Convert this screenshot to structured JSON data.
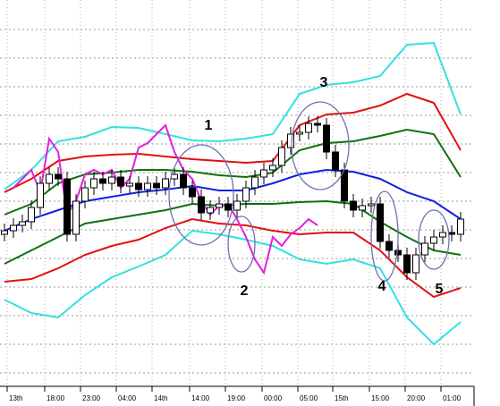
{
  "chart_data": {
    "type": "candlestick",
    "open": [
      16.8,
      17.2,
      17.8,
      18.2,
      19.8,
      22.5,
      23.5,
      23.0,
      16.8,
      20.5,
      22.0,
      23.0,
      22.5,
      23.2,
      22.2,
      22.5,
      21.8,
      22.5,
      22.0,
      23.0,
      23.5,
      22.0,
      21.0,
      19.2,
      19.8,
      20.2,
      19.5,
      20.5,
      22.0,
      23.2,
      24.0,
      24.5,
      26.5,
      28.0,
      28.2,
      29.2,
      29.0,
      26.0,
      24.0,
      20.5,
      19.5,
      20.0,
      20.2,
      16.0,
      15.0,
      14.5,
      12.5,
      14.5,
      15.8,
      16.5,
      17.0,
      16.8
    ],
    "high": [
      18.0,
      18.6,
      19.0,
      20.6,
      23.3,
      24.3,
      24.3,
      23.8,
      21.3,
      22.8,
      23.8,
      23.8,
      24.0,
      24.0,
      23.3,
      23.3,
      23.3,
      23.3,
      23.8,
      24.3,
      24.3,
      22.8,
      21.8,
      20.6,
      21.0,
      21.0,
      21.3,
      22.8,
      24.0,
      24.8,
      25.3,
      27.3,
      28.8,
      29.0,
      30.0,
      30.0,
      29.8,
      26.8,
      24.8,
      21.3,
      20.8,
      21.0,
      21.0,
      16.8,
      15.8,
      15.3,
      15.3,
      16.6,
      17.3,
      17.8,
      17.8,
      19.3
    ],
    "low": [
      16.0,
      16.4,
      17.0,
      17.4,
      19.0,
      21.7,
      22.2,
      16.0,
      16.0,
      19.7,
      21.2,
      21.7,
      21.7,
      21.4,
      21.4,
      21.0,
      21.0,
      21.2,
      21.2,
      22.2,
      21.2,
      20.2,
      18.4,
      18.4,
      19.0,
      18.7,
      18.7,
      19.7,
      21.2,
      22.4,
      23.2,
      23.7,
      25.7,
      27.2,
      27.4,
      28.2,
      25.2,
      23.2,
      19.7,
      18.7,
      18.7,
      19.2,
      15.2,
      14.2,
      13.7,
      11.7,
      11.7,
      13.7,
      15.0,
      15.7,
      16.0,
      16.0
    ],
    "close": [
      17.2,
      17.8,
      18.2,
      19.8,
      22.5,
      23.5,
      23.0,
      16.8,
      20.5,
      22.0,
      23.0,
      22.5,
      23.2,
      22.2,
      22.5,
      21.8,
      22.5,
      22.0,
      23.0,
      23.5,
      22.0,
      21.0,
      19.2,
      19.8,
      20.2,
      19.5,
      20.5,
      22.0,
      23.2,
      24.0,
      24.5,
      26.5,
      28.0,
      28.2,
      29.2,
      29.0,
      26.0,
      24.0,
      20.5,
      19.5,
      20.0,
      20.2,
      16.0,
      15.0,
      14.5,
      12.5,
      14.5,
      15.8,
      16.5,
      17.0,
      16.8,
      18.5
    ],
    "line_x": [
      0,
      3,
      6,
      9,
      12,
      15,
      18,
      21,
      24,
      27,
      30,
      33,
      36,
      39,
      42,
      45,
      48,
      51
    ],
    "lines": [
      {
        "color": "#33e0e0",
        "values": [
          21.8,
          24.0,
          27.2,
          27.7,
          28.8,
          28.7,
          28.0,
          27.3,
          27.2,
          27.5,
          28.0,
          32.5,
          33.5,
          33.8,
          34.5,
          38.0,
          38.2,
          30.2
        ]
      },
      {
        "color": "#e01010",
        "values": [
          21.5,
          23.0,
          25.0,
          25.5,
          25.7,
          25.8,
          25.5,
          25.2,
          25.0,
          24.8,
          25.0,
          29.0,
          30.2,
          30.4,
          31.2,
          32.5,
          31.5,
          26.2
        ]
      },
      {
        "color": "#107010",
        "values": [
          19.0,
          20.2,
          22.5,
          23.5,
          23.7,
          24.0,
          24.0,
          23.8,
          23.4,
          23.2,
          23.7,
          26.2,
          27.0,
          27.2,
          27.8,
          28.5,
          28.0,
          23.2
        ]
      },
      {
        "color": "#1020e0",
        "values": [
          17.2,
          18.5,
          19.5,
          20.5,
          21.0,
          21.5,
          21.8,
          22.2,
          21.7,
          21.7,
          22.5,
          23.5,
          24.0,
          23.8,
          23.0,
          21.5,
          20.5,
          18.5
        ]
      },
      {
        "color": "#107010",
        "values": [
          13.5,
          15.0,
          16.5,
          18.0,
          18.5,
          19.0,
          19.5,
          20.2,
          20.0,
          20.2,
          20.2,
          20.4,
          20.5,
          20.2,
          18.2,
          16.5,
          15.0,
          14.5
        ]
      },
      {
        "color": "#e01010",
        "values": [
          11.5,
          11.8,
          13.0,
          14.5,
          15.5,
          16.2,
          17.5,
          18.5,
          18.0,
          17.8,
          17.2,
          16.8,
          17.0,
          17.0,
          15.0,
          12.0,
          9.8,
          10.8
        ]
      },
      {
        "color": "#33e0e0",
        "values": [
          9.5,
          8.0,
          7.5,
          10.0,
          12.0,
          13.2,
          14.5,
          17.2,
          16.8,
          16.2,
          15.5,
          14.0,
          13.5,
          14.0,
          13.0,
          7.5,
          4.5,
          7.0
        ]
      }
    ],
    "lagging": {
      "color": "#e020e0",
      "x": [
        1,
        2,
        3,
        4,
        5,
        6,
        7,
        8,
        9,
        10,
        11,
        12,
        13,
        14,
        15,
        16,
        17,
        18,
        19,
        20,
        21,
        22,
        23,
        24,
        25,
        26,
        27,
        28,
        29,
        30,
        31,
        32,
        33,
        34,
        35
      ],
      "values": [
        22.0,
        23.0,
        24.0,
        21.5,
        27.5,
        26.0,
        19.0,
        20.5,
        23.5,
        24.0,
        23.5,
        24.0,
        22.0,
        23.0,
        26.5,
        27.0,
        28.0,
        29.0,
        26.0,
        24.0,
        23.0,
        20.5,
        19.0,
        20.0,
        20.2,
        18.5,
        16.5,
        14.0,
        12.5,
        16.5,
        15.5,
        16.8,
        17.5,
        18.5,
        17.8
      ]
    },
    "xlim": [
      -0.5,
      52.5
    ],
    "xticks": [
      {
        "value": 0.3,
        "label": "13th"
      },
      {
        "value": 4.5,
        "label": "18:00"
      },
      {
        "value": 8.5,
        "label": "23:00"
      },
      {
        "value": 12.5,
        "label": "04:00"
      },
      {
        "value": 16.5,
        "label": "14th"
      },
      {
        "value": 20.7,
        "label": "14:00"
      },
      {
        "value": 24.7,
        "label": "19:00"
      },
      {
        "value": 28.8,
        "label": "00:00"
      },
      {
        "value": 32.8,
        "label": "05:00"
      },
      {
        "value": 36.7,
        "label": "15th"
      },
      {
        "value": 40.8,
        "label": "15:00"
      },
      {
        "value": 44.8,
        "label": "20:00"
      },
      {
        "value": 48.8,
        "label": "01:00"
      }
    ],
    "ylim": [
      0,
      43
    ],
    "yticks": [
      39.7,
      36.5,
      33.3,
      30.1,
      26.9,
      23.7,
      20.5,
      17.3,
      14.1,
      10.9,
      7.7,
      4.5,
      1.3
    ],
    "grid": true,
    "annotations": [
      "1",
      "2",
      "3",
      "4",
      "5"
    ]
  }
}
